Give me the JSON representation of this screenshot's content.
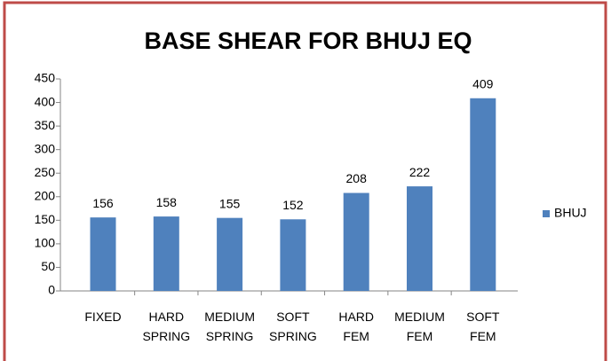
{
  "chart_data": {
    "type": "bar",
    "title": "BASE SHEAR FOR BHUJ EQ",
    "categories": [
      "FIXED",
      "HARD SPRING",
      "MEDIUM SPRING",
      "SOFT SPRING",
      "HARD FEM",
      "MEDIUM FEM",
      "SOFT FEM"
    ],
    "series": [
      {
        "name": "BHUJ",
        "color": "#4f81bd",
        "values": [
          156,
          158,
          155,
          152,
          208,
          222,
          409
        ]
      }
    ],
    "ylim": [
      0,
      450
    ],
    "yticks": [
      0,
      50,
      100,
      150,
      200,
      250,
      300,
      350,
      400,
      450
    ],
    "grid": false,
    "legend": "right"
  }
}
